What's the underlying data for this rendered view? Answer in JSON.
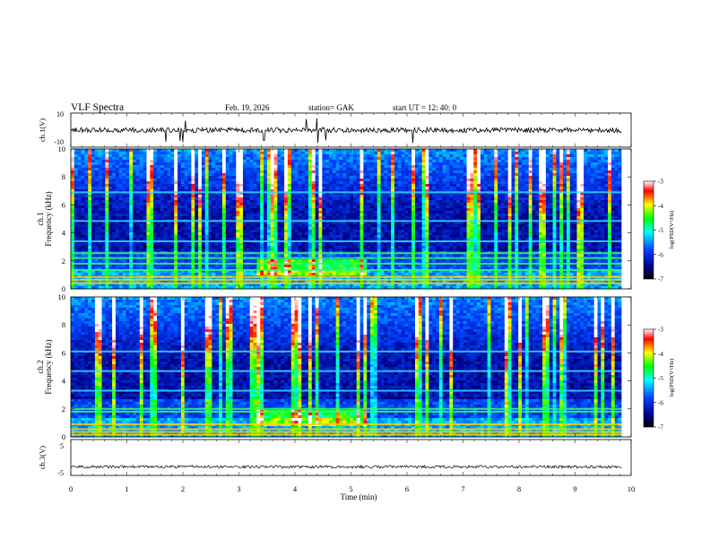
{
  "header": {
    "title": "VLF  Spectra",
    "date": "Feb. 19, 2026",
    "station": "station= GAK",
    "start": "start  UT  =   12: 40: 0"
  },
  "chart_data": [
    {
      "type": "line",
      "ylabel": "ch.1(V)",
      "x_range": [
        0,
        10
      ],
      "ylim": [
        -10,
        10
      ],
      "yticks": [
        "10",
        "-10"
      ],
      "trace": {
        "baseline": 0,
        "typical_amplitude": 1.5,
        "spikes_x": [
          1.7,
          1.95,
          2.0,
          2.05,
          3.45,
          4.2,
          4.4,
          4.55,
          6.1
        ]
      }
    },
    {
      "type": "heatmap",
      "ylabel_line1": "ch.1",
      "ylabel_line2": "Frequency (kHz)",
      "x_range": [
        0,
        10
      ],
      "data_x_end": 9.83,
      "ylim": [
        0,
        10
      ],
      "yticks": [
        "0",
        "2",
        "4",
        "6",
        "8",
        "10"
      ],
      "colorbar": {
        "label": "log(PSD(V²/Hz)",
        "range": [
          -7,
          -3
        ],
        "ticks": [
          "-3",
          "-4",
          "-5",
          "-6",
          "-7"
        ]
      },
      "bands_khz": [
        0.4,
        0.65,
        0.85,
        1.35,
        1.8,
        2.2,
        2.55,
        3.4,
        4.85,
        6.9
      ],
      "enhancement": {
        "x": [
          3.3,
          5.3
        ],
        "freq_khz": [
          0.9,
          2.2
        ]
      }
    },
    {
      "type": "heatmap",
      "ylabel_line1": "ch.2",
      "ylabel_line2": "Frequency (kHz)",
      "x_range": [
        0,
        10
      ],
      "data_x_end": 9.83,
      "ylim": [
        0,
        10
      ],
      "yticks": [
        "0",
        "2",
        "4",
        "6",
        "8",
        "10"
      ],
      "colorbar": {
        "label": "log(PSD(V²/Hz)",
        "range": [
          -7,
          -3
        ],
        "ticks": [
          "-3",
          "-4",
          "-5",
          "-6",
          "-7"
        ]
      },
      "bands_khz": [
        0.15,
        0.35,
        0.55,
        0.9,
        1.8,
        2.0,
        3.3,
        4.7,
        6.1
      ],
      "enhancement": {
        "x": [
          3.3,
          5.3
        ],
        "freq_khz": [
          0.8,
          1.9
        ]
      }
    },
    {
      "type": "line",
      "ylabel": "ch.3(V)",
      "x_range": [
        0,
        10
      ],
      "ylim": [
        -5,
        5
      ],
      "yticks": [
        "5",
        "-5"
      ],
      "trace": {
        "baseline": -2.6,
        "typical_amplitude": 0.4
      }
    }
  ],
  "xaxis": {
    "label": "Time  (min)",
    "ticks": [
      "0",
      "1",
      "2",
      "3",
      "4",
      "5",
      "6",
      "7",
      "8",
      "9",
      "10"
    ]
  }
}
